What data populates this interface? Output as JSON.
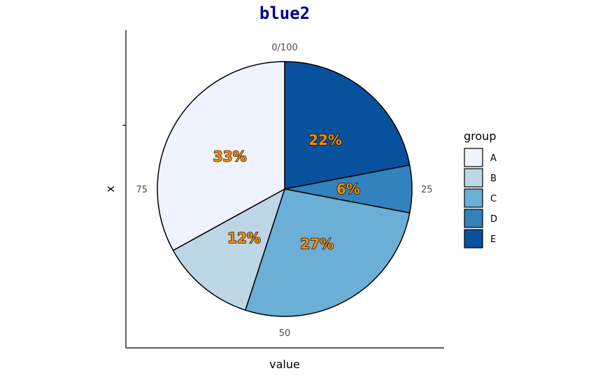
{
  "chart_data": {
    "type": "pie",
    "title": "blue2",
    "xlabel": "value",
    "ylabel": "x",
    "angular_ticks": [
      "0/100",
      "25",
      "50",
      "75"
    ],
    "categories": [
      "A",
      "B",
      "C",
      "D",
      "E"
    ],
    "values": [
      33,
      12,
      27,
      6,
      22
    ],
    "labels": [
      "33%",
      "12%",
      "27%",
      "6%",
      "22%"
    ],
    "colors": [
      "#EFF3FF",
      "#BDD7E7",
      "#6BAED6",
      "#3182BD",
      "#08519C"
    ],
    "label_color": "#FF8C00",
    "title_color": "#00008B",
    "legend": {
      "title": "group",
      "position": "right"
    }
  }
}
